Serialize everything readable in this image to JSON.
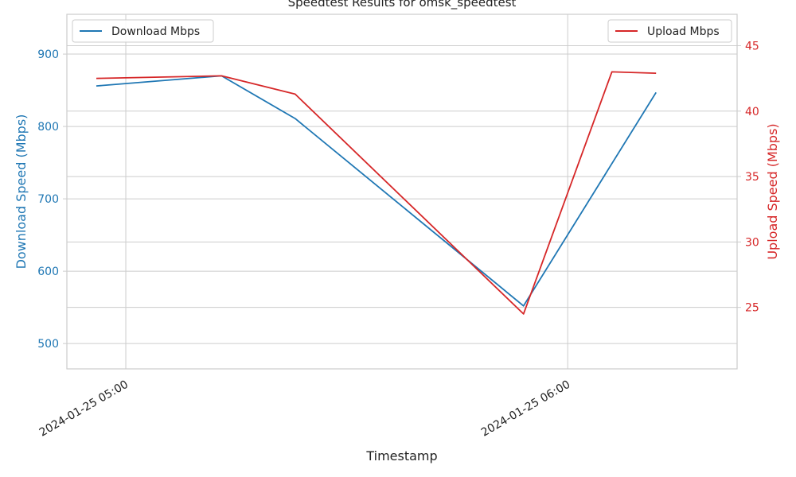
{
  "chart_data": {
    "type": "line",
    "title": "Speedtest Results for omsk_speedtest",
    "xlabel": "Timestamp",
    "x_ticks": [
      "2024-01-25 05:00",
      "2024-01-25 06:00"
    ],
    "x_range": [
      "2024-01-25 04:52",
      "2024-01-25 06:23"
    ],
    "left_axis": {
      "label": "Download Speed (Mbps)",
      "range": [
        465,
        955
      ],
      "ticks": [
        500,
        600,
        700,
        800,
        900
      ],
      "color": "#1f77b4"
    },
    "right_axis": {
      "label": "Upload Speed (Mbps)",
      "range": [
        20.3,
        47.4
      ],
      "ticks": [
        25,
        30,
        35,
        40,
        45
      ],
      "color": "#d62728"
    },
    "series": [
      {
        "name": "Download Mbps",
        "axis": "left",
        "color": "#1f77b4",
        "x": [
          "2024-01-25 04:56",
          "2024-01-25 05:13",
          "2024-01-25 05:23",
          "2024-01-25 05:54",
          "2024-01-25 06:12"
        ],
        "values": [
          856,
          870,
          811,
          552,
          847
        ]
      },
      {
        "name": "Upload Mbps",
        "axis": "right",
        "color": "#d62728",
        "x": [
          "2024-01-25 04:56",
          "2024-01-25 05:13",
          "2024-01-25 05:23",
          "2024-01-25 05:54",
          "2024-01-25 06:06",
          "2024-01-25 06:12"
        ],
        "values": [
          42.5,
          42.7,
          41.3,
          24.5,
          43.0,
          42.9
        ]
      }
    ],
    "grid": true,
    "legend": [
      "upper-left",
      "upper-right"
    ]
  }
}
